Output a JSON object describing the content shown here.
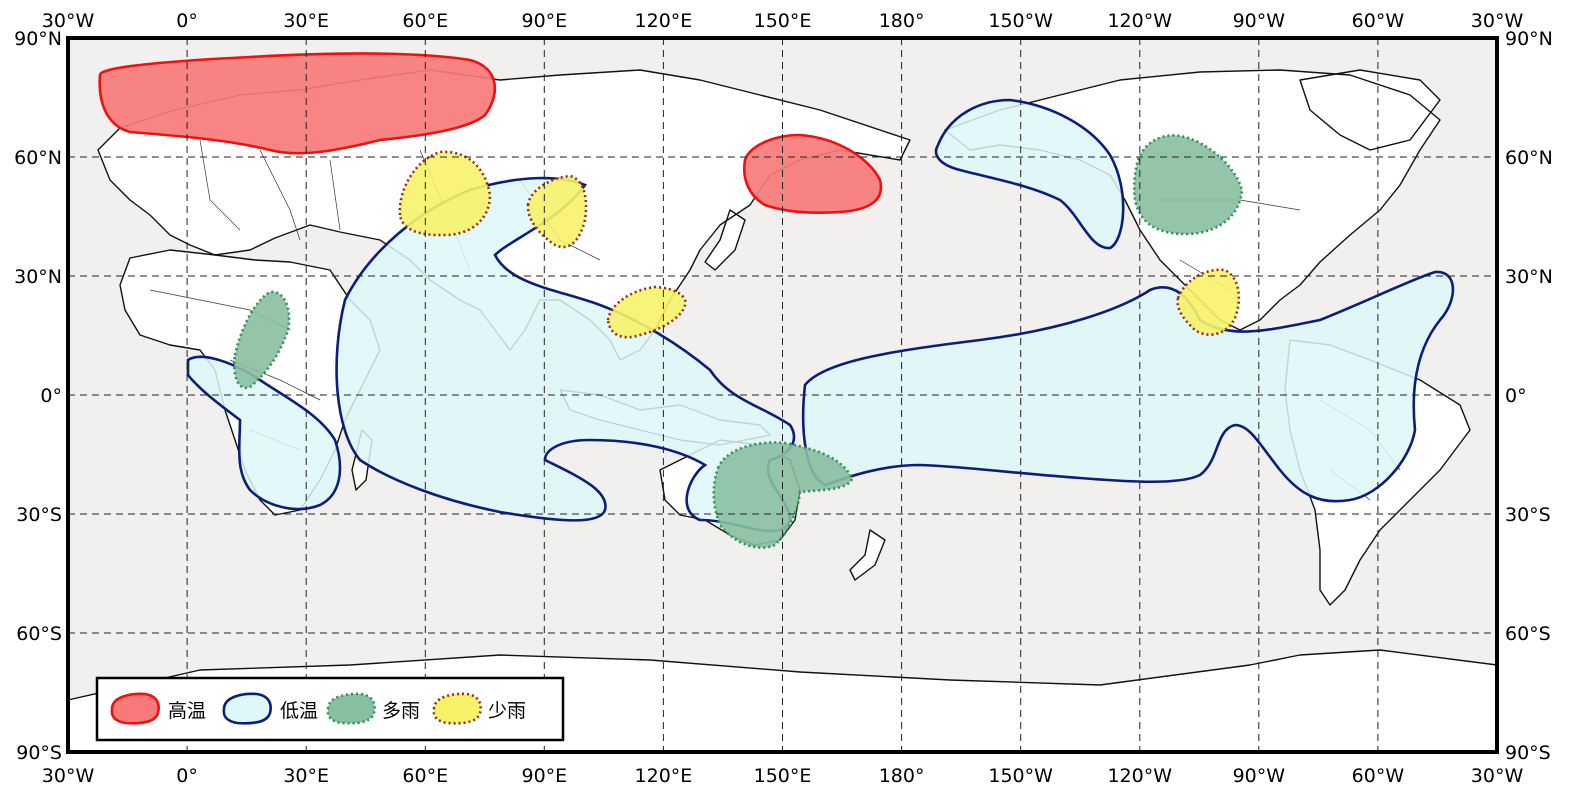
{
  "axes": {
    "lon_labels": [
      "30°W",
      "0°",
      "30°E",
      "60°E",
      "90°E",
      "120°E",
      "150°E",
      "180°",
      "150°W",
      "120°W",
      "90°W",
      "60°W",
      "30°W"
    ],
    "lat_labels": [
      "90°N",
      "60°N",
      "30°N",
      "0°",
      "30°S",
      "60°S",
      "90°S"
    ]
  },
  "legend": {
    "items": [
      {
        "label": "高温",
        "fill": "#f87979",
        "stroke": "#ee1111",
        "style": "solid"
      },
      {
        "label": "低温",
        "fill": "#def7f8",
        "stroke": "#0c1d7a",
        "style": "solid"
      },
      {
        "label": "多雨",
        "fill": "#88bfa0",
        "stroke": "#2f8f55",
        "style": "dotted"
      },
      {
        "label": "少雨",
        "fill": "#f6f36a",
        "stroke": "#9a2b1a",
        "style": "dotted"
      }
    ]
  },
  "colors": {
    "ocean": "#f1f0ef",
    "frame": "#000000"
  }
}
